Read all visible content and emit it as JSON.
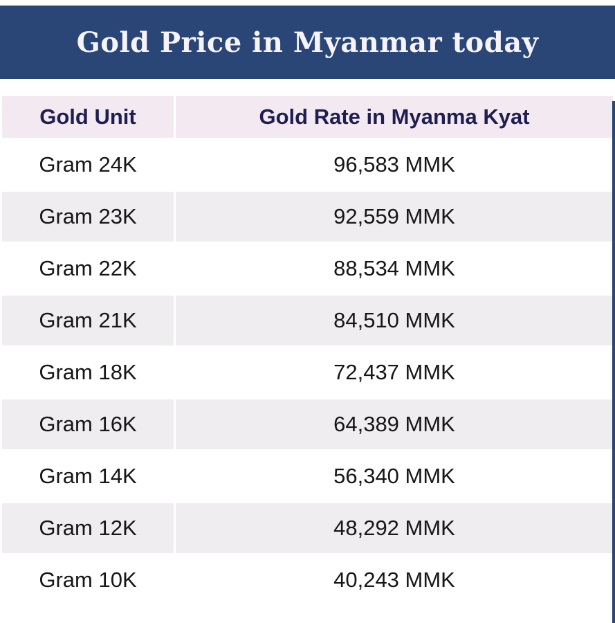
{
  "banner": {
    "title": "Gold Price in Myanmar today"
  },
  "table": {
    "columns": {
      "unit": "Gold Unit",
      "rate": "Gold Rate in Myanma Kyat"
    },
    "rows": [
      {
        "unit": "Gram 24K",
        "rate": "96,583 MMK"
      },
      {
        "unit": "Gram 23K",
        "rate": "92,559 MMK"
      },
      {
        "unit": "Gram 22K",
        "rate": "88,534 MMK"
      },
      {
        "unit": "Gram 21K",
        "rate": "84,510 MMK"
      },
      {
        "unit": "Gram 18K",
        "rate": "72,437 MMK"
      },
      {
        "unit": "Gram 16K",
        "rate": "64,389 MMK"
      },
      {
        "unit": "Gram 14K",
        "rate": "56,340 MMK"
      },
      {
        "unit": "Gram 12K",
        "rate": "48,292 MMK"
      },
      {
        "unit": "Gram 10K",
        "rate": "40,243 MMK"
      }
    ]
  },
  "colors": {
    "banner_bg": "#294677",
    "banner_text": "#f7f3fb",
    "header_row_bg": "#f2e9f1",
    "header_row_text": "#201d53",
    "alt_row_bg": "#f0edf0",
    "body_text": "#161616"
  },
  "chart_data": {
    "type": "table",
    "title": "Gold Price in Myanmar today",
    "columns": [
      "Gold Unit",
      "Gold Rate in Myanma Kyat"
    ],
    "categories": [
      "Gram 24K",
      "Gram 23K",
      "Gram 22K",
      "Gram 21K",
      "Gram 18K",
      "Gram 16K",
      "Gram 14K",
      "Gram 12K",
      "Gram 10K"
    ],
    "values": [
      96583,
      92559,
      88534,
      84510,
      72437,
      64389,
      56340,
      48292,
      40243
    ],
    "unit": "MMK"
  }
}
